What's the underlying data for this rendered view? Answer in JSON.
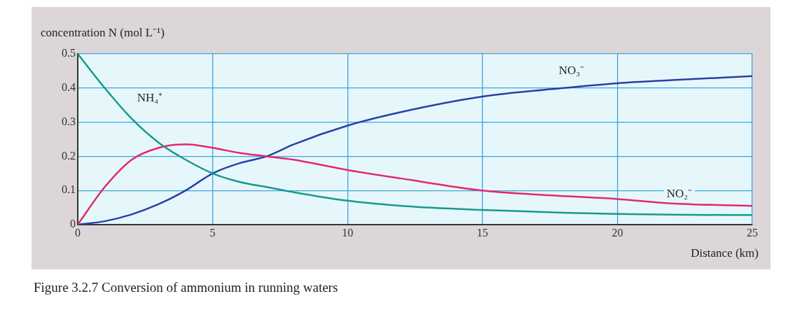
{
  "chart_data": {
    "type": "line",
    "title": "Figure 3.2.7 Conversion of ammonium in running waters",
    "xlabel": "Distance (km)",
    "ylabel": "concentration N (mol L⁻¹)",
    "xlim": [
      0,
      25
    ],
    "xticks": [
      0,
      5,
      10,
      15,
      20,
      25
    ],
    "ylim": [
      0,
      0.5
    ],
    "yticks": [
      0,
      0.1,
      0.2,
      0.3,
      0.4,
      0.5
    ],
    "grid": true,
    "legend": false,
    "marker": "none",
    "line_style": "solid",
    "series": [
      {
        "name": "NH₄⁺",
        "color": "#179a8c",
        "x": [
          0,
          1,
          2,
          3,
          4,
          5,
          6,
          7,
          8,
          10,
          12,
          15,
          18,
          20,
          22,
          25
        ],
        "values": [
          0.5,
          0.4,
          0.31,
          0.24,
          0.19,
          0.15,
          0.125,
          0.11,
          0.095,
          0.07,
          0.055,
          0.043,
          0.035,
          0.031,
          0.029,
          0.028
        ]
      },
      {
        "name": "NO₂⁻",
        "color": "#e2296f",
        "x": [
          0,
          1,
          2,
          3,
          4,
          5,
          6,
          7,
          8,
          10,
          12,
          15,
          17,
          20,
          22,
          25
        ],
        "values": [
          0,
          0.11,
          0.19,
          0.225,
          0.235,
          0.225,
          0.21,
          0.2,
          0.19,
          0.16,
          0.135,
          0.1,
          0.088,
          0.075,
          0.062,
          0.055
        ]
      },
      {
        "name": "NO₃⁻",
        "color": "#2a3fa6",
        "x": [
          0,
          1,
          2,
          3,
          4,
          5,
          6,
          7,
          8,
          10,
          12,
          15,
          18,
          20,
          22,
          25
        ],
        "values": [
          0,
          0.01,
          0.03,
          0.06,
          0.1,
          0.15,
          0.18,
          0.2,
          0.235,
          0.29,
          0.33,
          0.375,
          0.4,
          0.414,
          0.423,
          0.435
        ]
      }
    ]
  }
}
